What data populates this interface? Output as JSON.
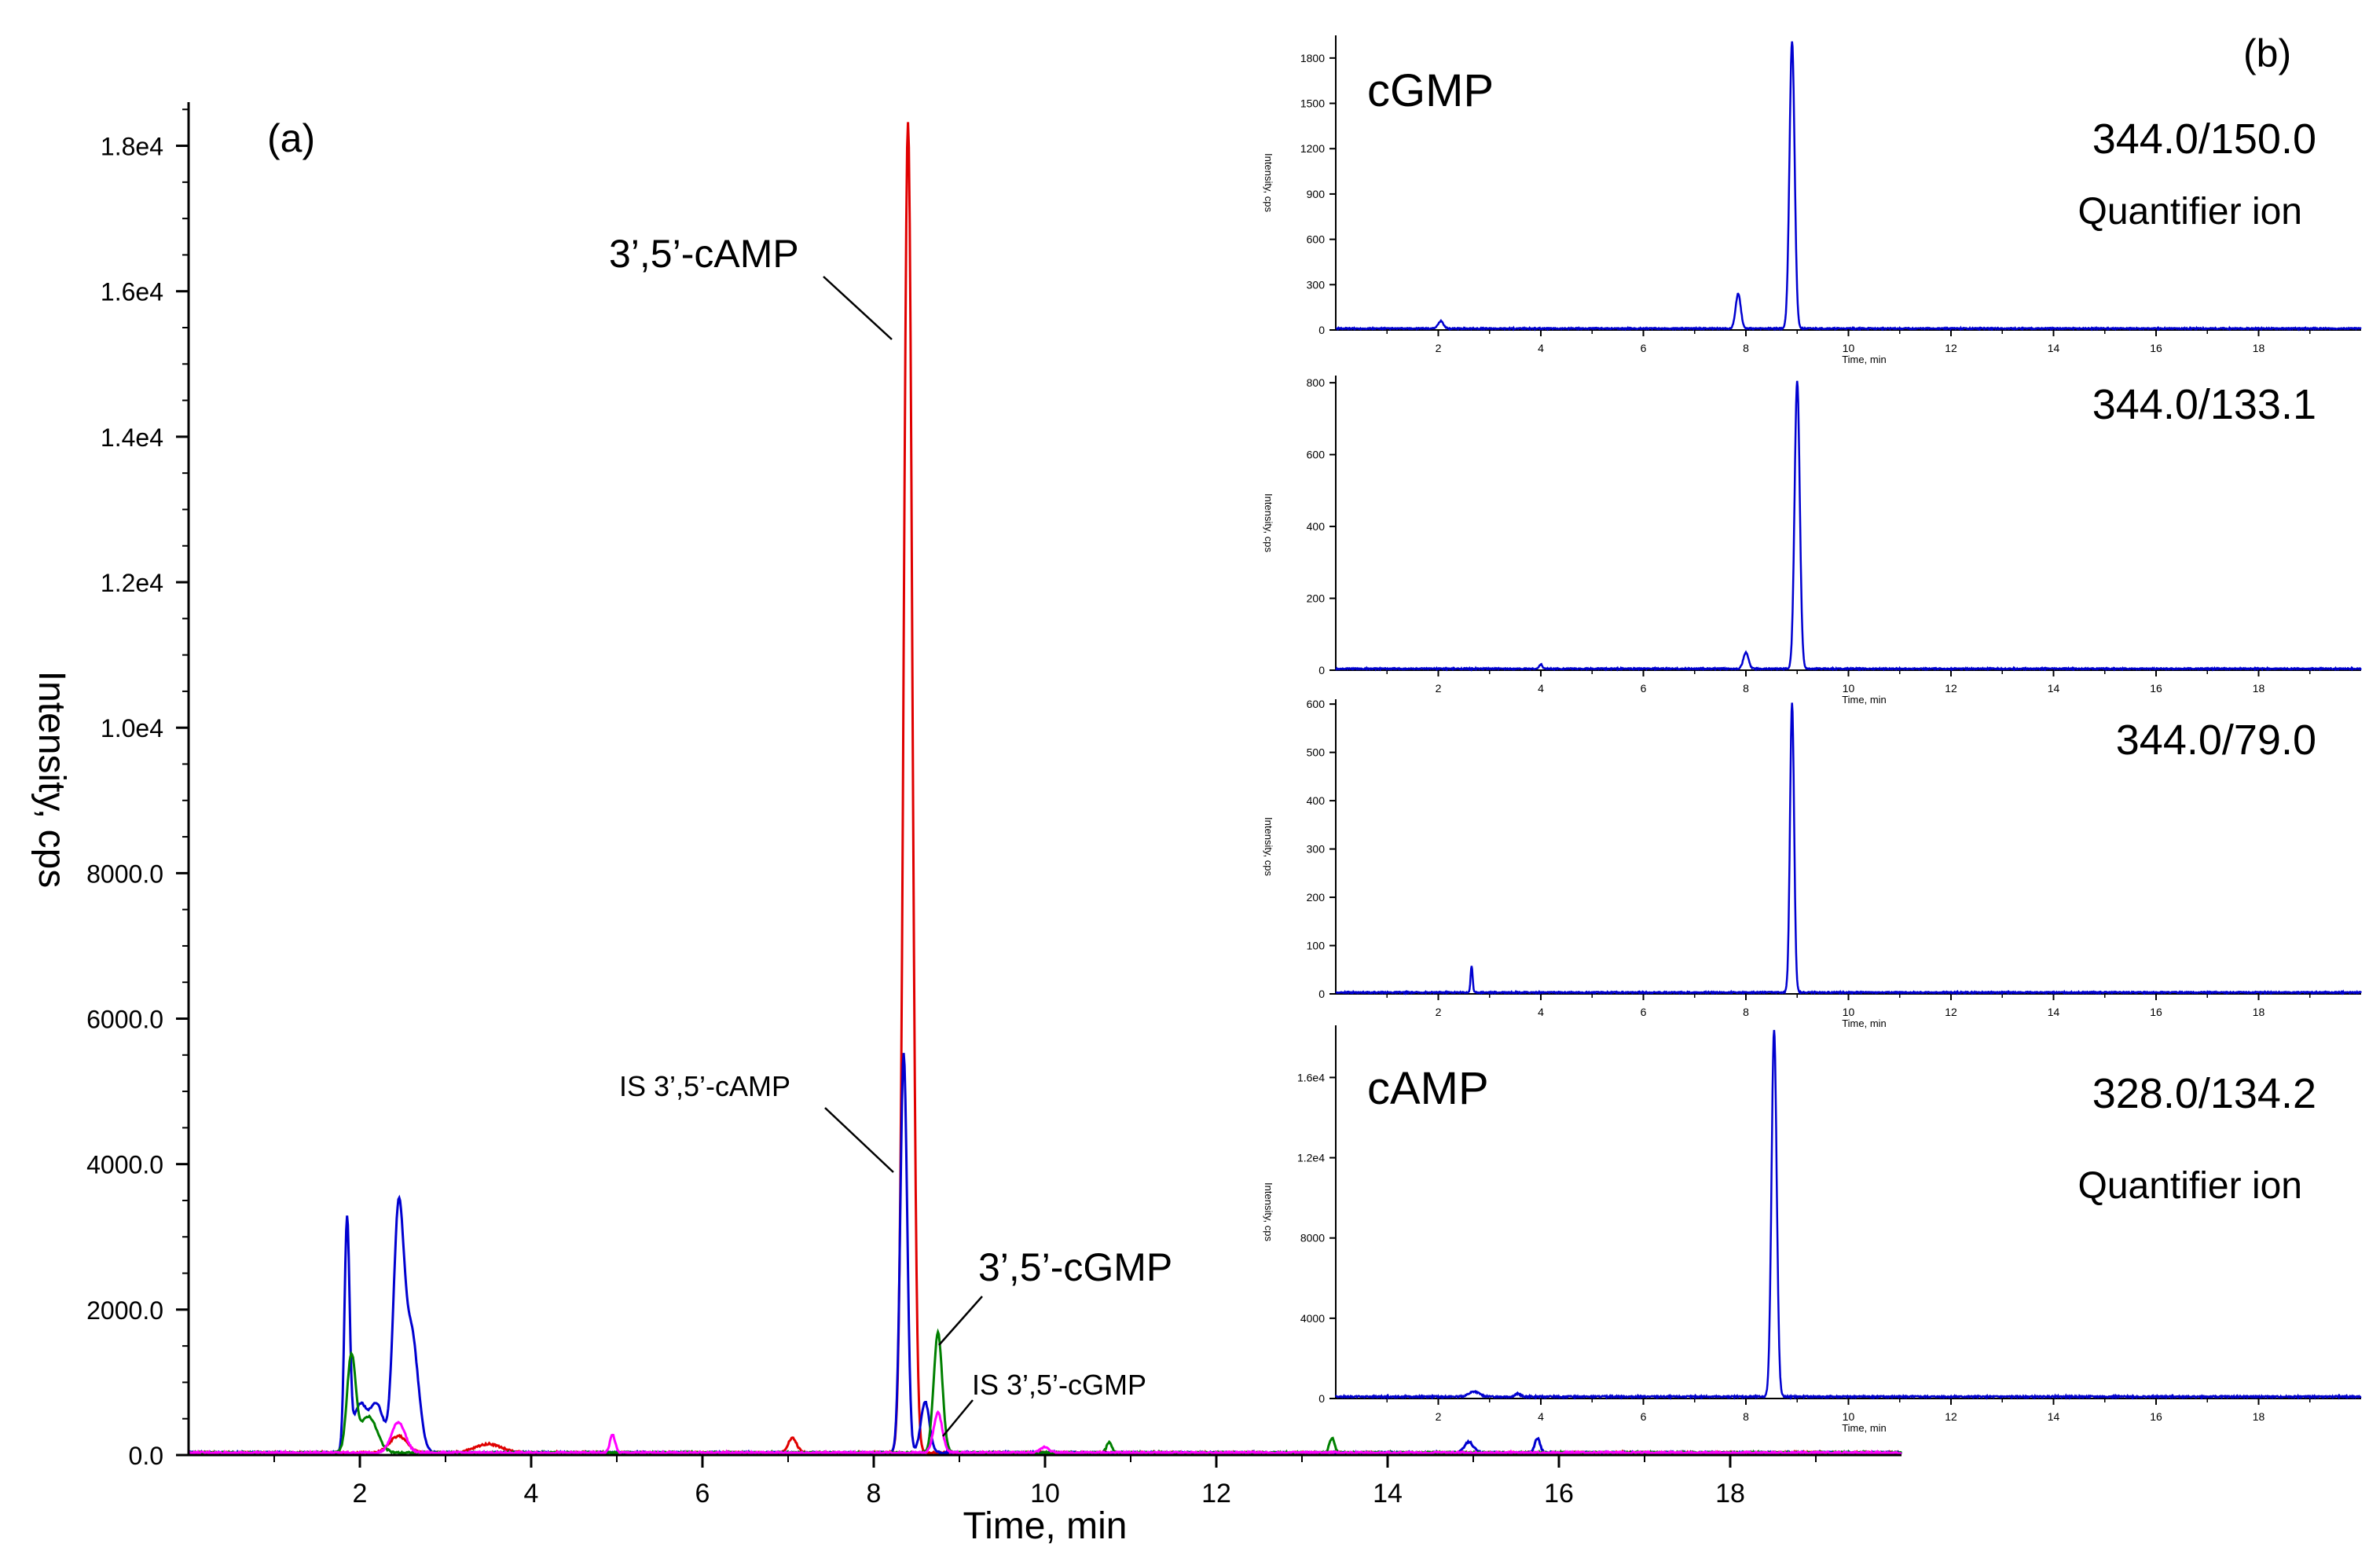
{
  "chart_data": [
    {
      "type": "line",
      "panel_label": "(a)",
      "xlabel": "Time, min",
      "ylabel": "Intensity, cps",
      "xlim": [
        0,
        20
      ],
      "ylim": [
        0,
        18600
      ],
      "x_ticks": [
        2,
        4,
        6,
        8,
        10,
        12,
        14,
        16,
        18
      ],
      "y_ticks": [
        {
          "value": 0,
          "label": "0.0"
        },
        {
          "value": 2000,
          "label": "2000.0"
        },
        {
          "value": 4000,
          "label": "4000.0"
        },
        {
          "value": 6000,
          "label": "6000.0"
        },
        {
          "value": 8000,
          "label": "8000.0"
        },
        {
          "value": 10000,
          "label": "1.0e4"
        },
        {
          "value": 12000,
          "label": "1.2e4"
        },
        {
          "value": 14000,
          "label": "1.4e4"
        },
        {
          "value": 16000,
          "label": "1.6e4"
        },
        {
          "value": 18000,
          "label": "1.8e4"
        }
      ],
      "grid": false,
      "series": [
        {
          "color": "#e00000",
          "peaks": [
            [
              8.4,
              18300,
              0.05
            ],
            [
              7.05,
              200,
              0.05
            ],
            [
              3.5,
              120,
              0.15
            ],
            [
              2.45,
              230,
              0.1
            ]
          ]
        },
        {
          "color": "#0000d0",
          "peaks": [
            [
              1.85,
              3150,
              0.03
            ],
            [
              2.0,
              650,
              0.08
            ],
            [
              2.2,
              650,
              0.08
            ],
            [
              2.45,
              3200,
              0.06
            ],
            [
              2.6,
              1650,
              0.08
            ],
            [
              8.35,
              5500,
              0.04
            ],
            [
              8.6,
              700,
              0.05
            ],
            [
              14.95,
              150,
              0.05
            ],
            [
              15.75,
              200,
              0.03
            ]
          ]
        },
        {
          "color": "#008000",
          "peaks": [
            [
              1.9,
              1300,
              0.05
            ],
            [
              2.1,
              500,
              0.1
            ],
            [
              8.75,
              1650,
              0.05
            ],
            [
              10.75,
              150,
              0.03
            ],
            [
              13.35,
              200,
              0.03
            ]
          ]
        },
        {
          "color": "#ff00ff",
          "peaks": [
            [
              2.45,
              420,
              0.08
            ],
            [
              4.95,
              250,
              0.03
            ],
            [
              8.75,
              550,
              0.05
            ],
            [
              10.0,
              80,
              0.05
            ]
          ]
        }
      ],
      "annotations": [
        {
          "text": "3’,5’-cAMP",
          "target": [
            8.3,
            15200
          ]
        },
        {
          "text": "IS 3’,5’-cAMP",
          "target": [
            8.3,
            3900
          ]
        },
        {
          "text": "3’,5’-cGMP",
          "target": [
            8.75,
            1450
          ]
        },
        {
          "text": "IS 3’,5’-cGMP",
          "target": [
            8.85,
            300
          ]
        }
      ]
    },
    {
      "type": "line",
      "panel_label": "(b)",
      "xlabel": "Time, min",
      "ylabel": "Intensity, cps",
      "panels": [
        {
          "compound": "cGMP",
          "transition": "344.0/150.0",
          "note": "Quantifier ion",
          "xlim": [
            0,
            20
          ],
          "ylim": [
            0,
            1950
          ],
          "x_ticks": [
            2,
            4,
            6,
            8,
            10,
            12,
            14,
            16,
            18
          ],
          "y_ticks": [
            {
              "value": 0,
              "label": "0"
            },
            {
              "value": 300,
              "label": "300"
            },
            {
              "value": 600,
              "label": "600"
            },
            {
              "value": 900,
              "label": "900"
            },
            {
              "value": 1200,
              "label": "1200"
            },
            {
              "value": 1500,
              "label": "1500"
            },
            {
              "value": 1800,
              "label": "1800"
            }
          ],
          "series": [
            {
              "color": "#0000d0",
              "peaks": [
                [
                  8.9,
                  1900,
                  0.05
                ],
                [
                  7.85,
                  230,
                  0.05
                ],
                [
                  2.05,
                  50,
                  0.05
                ]
              ]
            }
          ]
        },
        {
          "compound": "",
          "transition": "344.0/133.1",
          "note": "",
          "xlim": [
            0,
            20
          ],
          "ylim": [
            0,
            820
          ],
          "x_ticks": [
            2,
            4,
            6,
            8,
            10,
            12,
            14,
            16,
            18
          ],
          "y_ticks": [
            {
              "value": 0,
              "label": "0"
            },
            {
              "value": 200,
              "label": "200"
            },
            {
              "value": 400,
              "label": "400"
            },
            {
              "value": 600,
              "label": "600"
            },
            {
              "value": 800,
              "label": "800"
            }
          ],
          "series": [
            {
              "color": "#0000d0",
              "peaks": [
                [
                  9.0,
                  800,
                  0.05
                ],
                [
                  8.0,
                  45,
                  0.05
                ],
                [
                  4.0,
                  12,
                  0.03
                ]
              ]
            }
          ]
        },
        {
          "compound": "",
          "transition": "344.0/79.0",
          "note": "",
          "xlim": [
            0,
            20
          ],
          "ylim": [
            0,
            610
          ],
          "x_ticks": [
            2,
            4,
            6,
            8,
            10,
            12,
            14,
            16,
            18
          ],
          "y_ticks": [
            {
              "value": 0,
              "label": "0"
            },
            {
              "value": 100,
              "label": "100"
            },
            {
              "value": 200,
              "label": "200"
            },
            {
              "value": 300,
              "label": "300"
            },
            {
              "value": 400,
              "label": "400"
            },
            {
              "value": 500,
              "label": "500"
            },
            {
              "value": 600,
              "label": "600"
            }
          ],
          "series": [
            {
              "color": "#0000d0",
              "peaks": [
                [
                  8.9,
                  600,
                  0.04
                ],
                [
                  2.65,
                  55,
                  0.02
                ]
              ]
            }
          ]
        },
        {
          "compound": "cAMP",
          "transition": "328.0/134.2",
          "note": "Quantifier ion",
          "xlim": [
            0,
            20
          ],
          "ylim": [
            0,
            18600
          ],
          "x_ticks": [
            2,
            4,
            6,
            8,
            10,
            12,
            14,
            16,
            18
          ],
          "y_ticks": [
            {
              "value": 0,
              "label": "0"
            },
            {
              "value": 4000,
              "label": "4000"
            },
            {
              "value": 8000,
              "label": "8000"
            },
            {
              "value": 12000,
              "label": "1.2e4"
            },
            {
              "value": 16000,
              "label": "1.6e4"
            }
          ],
          "series": [
            {
              "color": "#0000d0",
              "peaks": [
                [
                  8.55,
                  18300,
                  0.05
                ],
                [
                  2.7,
                  250,
                  0.1
                ],
                [
                  3.55,
                  150,
                  0.05
                ]
              ]
            }
          ]
        }
      ]
    }
  ]
}
